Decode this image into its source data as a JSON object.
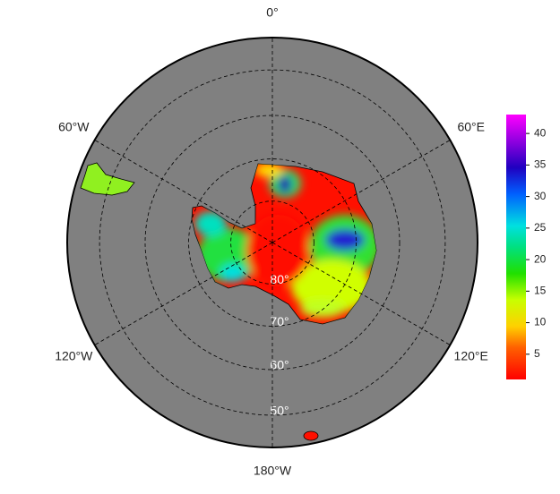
{
  "map": {
    "meridians": [
      {
        "value": 0,
        "label": "0°"
      },
      {
        "value": 60,
        "label": "60°E"
      },
      {
        "value": 120,
        "label": "120°E"
      },
      {
        "value": 180,
        "label": "180°W"
      },
      {
        "value": -120,
        "label": "120°W"
      },
      {
        "value": -60,
        "label": "60°W"
      }
    ],
    "parallels": [
      {
        "value": 80,
        "label": "80°"
      },
      {
        "value": 70,
        "label": "70°"
      },
      {
        "value": 60,
        "label": "60°"
      },
      {
        "value": 50,
        "label": "50°"
      }
    ],
    "colorbar": {
      "lim": [
        1,
        43
      ],
      "ticks": [
        5,
        10,
        15,
        20,
        25,
        30,
        35,
        40
      ]
    }
  }
}
